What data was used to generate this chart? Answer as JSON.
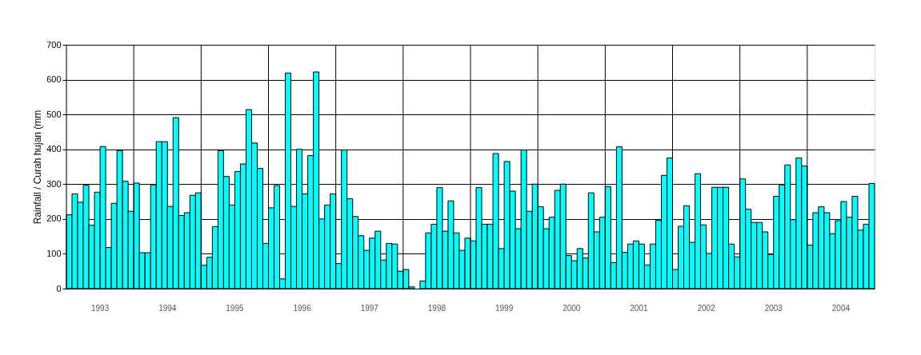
{
  "chart_data": {
    "type": "bar",
    "ylabel": "Rainfall / Curah hujan (mm",
    "categories": [
      null,
      null,
      null,
      null,
      null,
      null,
      "1993",
      null,
      null,
      null,
      null,
      null,
      null,
      null,
      null,
      null,
      null,
      null,
      "1994",
      null,
      null,
      null,
      null,
      null,
      null,
      null,
      null,
      null,
      null,
      null,
      "1995",
      null,
      null,
      null,
      null,
      null,
      null,
      null,
      null,
      null,
      null,
      null,
      "1996",
      null,
      null,
      null,
      null,
      null,
      null,
      null,
      null,
      null,
      null,
      null,
      "1997",
      null,
      null,
      null,
      null,
      null,
      null,
      null,
      null,
      null,
      null,
      null,
      "1998",
      null,
      null,
      null,
      null,
      null,
      null,
      null,
      null,
      null,
      null,
      null,
      "1999",
      null,
      null,
      null,
      null,
      null,
      null,
      null,
      null,
      null,
      null,
      null,
      "2000",
      null,
      null,
      null,
      null,
      null,
      null,
      null,
      null,
      null,
      null,
      null,
      "2001",
      null,
      null,
      null,
      null,
      null,
      null,
      null,
      null,
      null,
      null,
      null,
      "2002",
      null,
      null,
      null,
      null,
      null,
      null,
      null,
      null,
      null,
      null,
      null,
      "2003",
      null,
      null,
      null,
      null,
      null,
      null,
      null,
      null,
      null,
      null,
      null,
      "2004",
      null,
      null,
      null,
      null,
      null
    ],
    "values": [
      212,
      272,
      248,
      297,
      182,
      277,
      408,
      118,
      245,
      396,
      308,
      222,
      303,
      103,
      103,
      298,
      422,
      422,
      236,
      491,
      210,
      218,
      268,
      275,
      67,
      90,
      178,
      396,
      322,
      240,
      336,
      358,
      514,
      418,
      345,
      130,
      232,
      296,
      28,
      619,
      236,
      400,
      272,
      382,
      622,
      200,
      240,
      272,
      72,
      398,
      258,
      207,
      152,
      110,
      145,
      165,
      82,
      130,
      128,
      50,
      55,
      5,
      0,
      22,
      160,
      185,
      290,
      165,
      252,
      160,
      110,
      145,
      137,
      290,
      185,
      185,
      388,
      115,
      365,
      280,
      172,
      398,
      222,
      300,
      235,
      172,
      205,
      282,
      300,
      95,
      80,
      115,
      88,
      275,
      163,
      205,
      293,
      75,
      407,
      104,
      128,
      137,
      128,
      68,
      128,
      196,
      325,
      375,
      55,
      179,
      238,
      133,
      330,
      183,
      101,
      291,
      291,
      291,
      128,
      91,
      315,
      228,
      190,
      190,
      163,
      98,
      265,
      298,
      355,
      198,
      375,
      352,
      125,
      218,
      235,
      218,
      158,
      195,
      250,
      205,
      265,
      168,
      185,
      302
    ],
    "color": "#00ffff",
    "ylim": [
      0,
      700
    ],
    "yticks": [
      0,
      100,
      200,
      300,
      400,
      500,
      600,
      700
    ],
    "grid": true
  }
}
